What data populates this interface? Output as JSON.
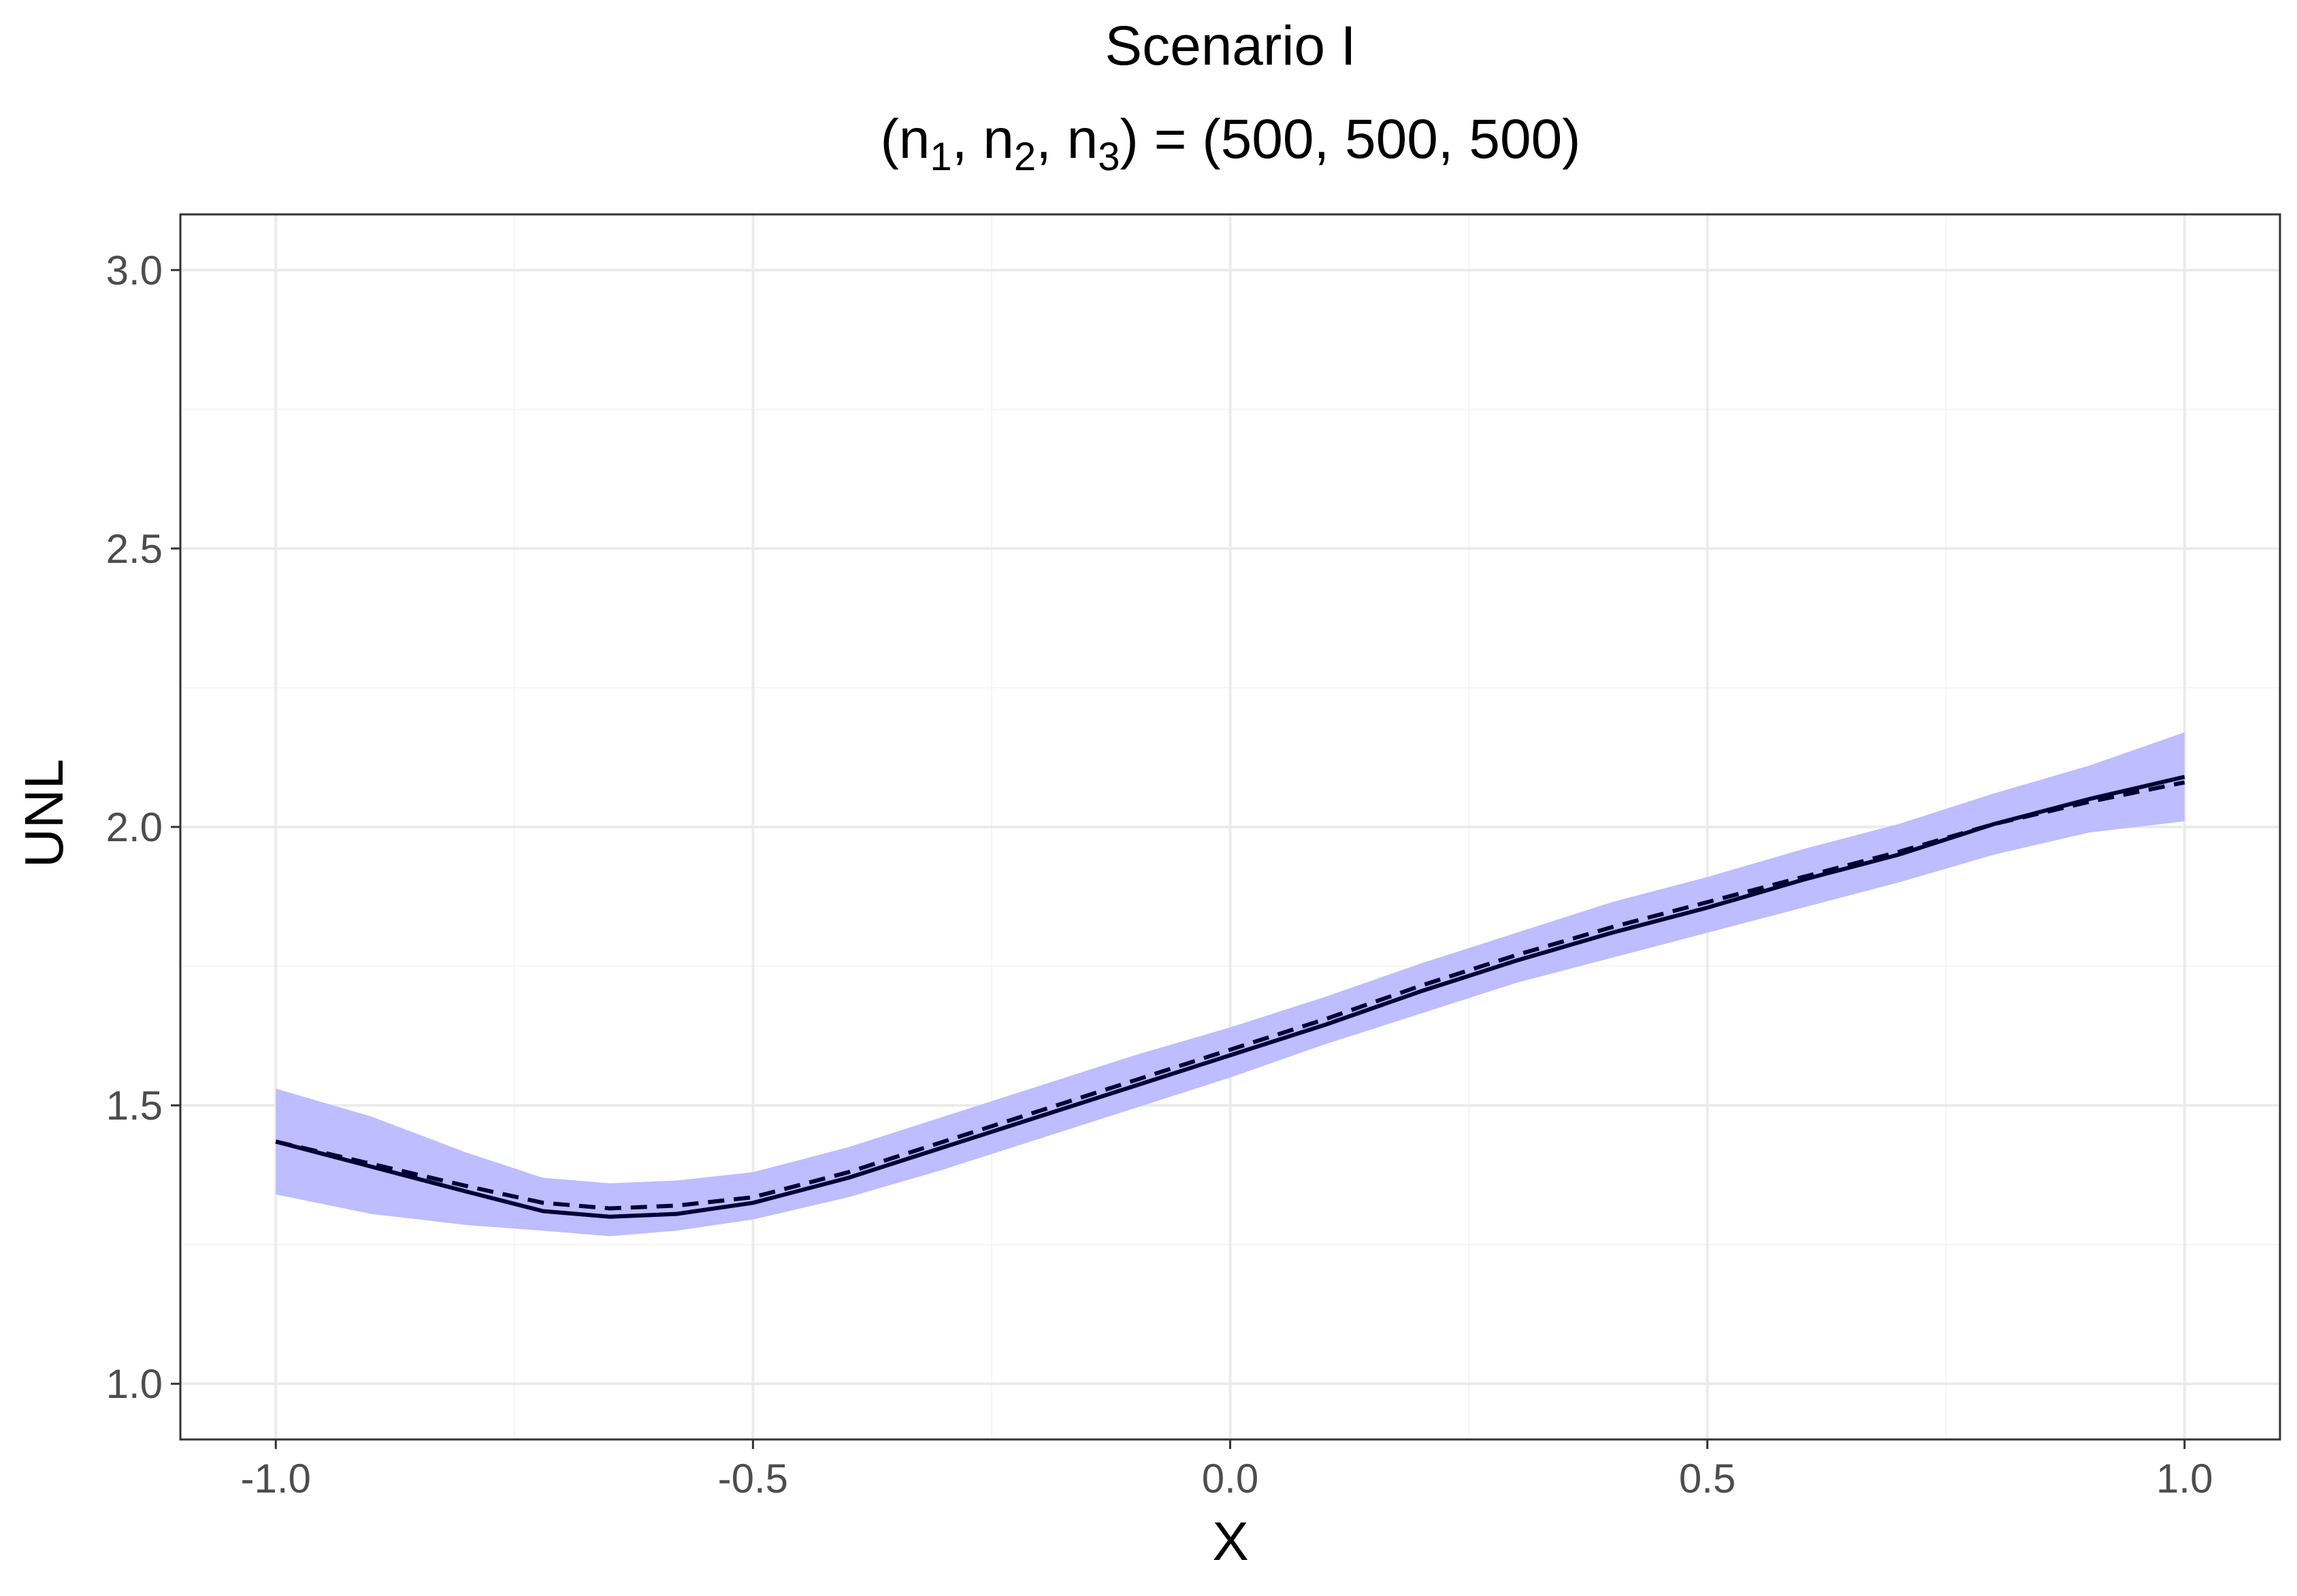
{
  "chart_data": {
    "type": "line",
    "title": "Scenario I",
    "subtitle": {
      "prefix": "(n",
      "parts": [
        {
          "sub": "1",
          "after": ", n"
        },
        {
          "sub": "2",
          "after": ", n"
        },
        {
          "sub": "3",
          "after": ") = (500, 500, 500)"
        }
      ]
    },
    "xlabel": "X",
    "ylabel": "UNL",
    "xlim": [
      -1.1,
      1.1
    ],
    "ylim": [
      0.9,
      3.1
    ],
    "x_ticks": [
      -1.0,
      -0.5,
      0.0,
      0.5,
      1.0
    ],
    "x_tick_labels": [
      "-1.0",
      "-0.5",
      "0.0",
      "0.5",
      "1.0"
    ],
    "y_ticks": [
      1.0,
      1.5,
      2.0,
      2.5,
      3.0
    ],
    "y_tick_labels": [
      "1.0",
      "1.5",
      "2.0",
      "2.5",
      "3.0"
    ],
    "grid": true,
    "x": [
      -1.0,
      -0.9,
      -0.8,
      -0.72,
      -0.65,
      -0.58,
      -0.5,
      -0.4,
      -0.3,
      -0.2,
      -0.1,
      0.0,
      0.1,
      0.2,
      0.3,
      0.4,
      0.5,
      0.6,
      0.7,
      0.8,
      0.9,
      1.0
    ],
    "series": [
      {
        "style": "solid",
        "values": [
          1.435,
          1.39,
          1.345,
          1.31,
          1.3,
          1.305,
          1.325,
          1.37,
          1.425,
          1.48,
          1.535,
          1.59,
          1.645,
          1.705,
          1.76,
          1.81,
          1.855,
          1.905,
          1.95,
          2.005,
          2.05,
          2.09
        ]
      },
      {
        "style": "dashed",
        "values": [
          1.435,
          1.395,
          1.355,
          1.325,
          1.315,
          1.32,
          1.335,
          1.38,
          1.435,
          1.49,
          1.545,
          1.6,
          1.655,
          1.715,
          1.77,
          1.82,
          1.865,
          1.91,
          1.955,
          2.005,
          2.045,
          2.08
        ]
      }
    ],
    "band": {
      "lower": [
        1.34,
        1.305,
        1.285,
        1.275,
        1.265,
        1.275,
        1.295,
        1.335,
        1.385,
        1.44,
        1.495,
        1.55,
        1.61,
        1.665,
        1.72,
        1.765,
        1.81,
        1.855,
        1.9,
        1.95,
        1.99,
        2.01
      ],
      "upper": [
        1.53,
        1.48,
        1.415,
        1.37,
        1.36,
        1.365,
        1.38,
        1.425,
        1.48,
        1.535,
        1.59,
        1.64,
        1.695,
        1.755,
        1.81,
        1.865,
        1.91,
        1.96,
        2.005,
        2.06,
        2.11,
        2.17
      ]
    },
    "colors": {
      "band": "#bdbdff",
      "line": "#000033",
      "panel_border": "#333333",
      "grid_major": "#ebebeb",
      "grid_minor": "#f5f5f5"
    }
  }
}
